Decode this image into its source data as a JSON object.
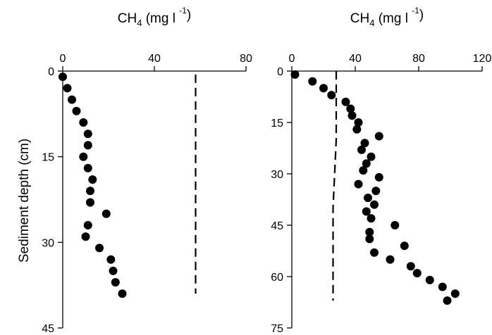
{
  "figure": {
    "y_axis_title": "Sediment depth (cm)"
  },
  "chart_data": [
    {
      "type": "scatter",
      "x_title": {
        "base": "CH",
        "sub": "4",
        "units": "(mg l",
        "sup": "-1",
        "close": ")"
      },
      "xlim": [
        0,
        80
      ],
      "x_ticks": [
        0,
        40,
        80
      ],
      "ylim": [
        0,
        45
      ],
      "y_ticks": [
        0,
        15,
        30,
        45
      ],
      "y_reversed": true,
      "x_axis_position": "top",
      "reference_line": {
        "style": "dashed",
        "x": [
          58,
          58
        ],
        "y": [
          0.6,
          39
        ]
      },
      "series": [
        {
          "marker": "filled-circle",
          "points": [
            {
              "x": 0,
              "y": 1
            },
            {
              "x": 2,
              "y": 3
            },
            {
              "x": 4,
              "y": 5
            },
            {
              "x": 6,
              "y": 7
            },
            {
              "x": 9,
              "y": 9
            },
            {
              "x": 11,
              "y": 11
            },
            {
              "x": 11,
              "y": 13
            },
            {
              "x": 9,
              "y": 15
            },
            {
              "x": 11,
              "y": 17
            },
            {
              "x": 13,
              "y": 19
            },
            {
              "x": 12,
              "y": 21
            },
            {
              "x": 12,
              "y": 23
            },
            {
              "x": 19,
              "y": 25
            },
            {
              "x": 11,
              "y": 27
            },
            {
              "x": 10,
              "y": 29
            },
            {
              "x": 16,
              "y": 31
            },
            {
              "x": 21,
              "y": 33
            },
            {
              "x": 22,
              "y": 35
            },
            {
              "x": 23,
              "y": 37
            },
            {
              "x": 26,
              "y": 39
            }
          ]
        }
      ]
    },
    {
      "type": "scatter",
      "x_title": {
        "base": "CH",
        "sub": "4",
        "units": "(mg l",
        "sup": "-1",
        "close": ")"
      },
      "xlim": [
        0,
        120
      ],
      "x_ticks": [
        0,
        40,
        80,
        120
      ],
      "ylim": [
        0,
        75
      ],
      "y_ticks": [
        0,
        15,
        30,
        45,
        60,
        75
      ],
      "y_reversed": true,
      "x_axis_position": "top",
      "reference_line": {
        "style": "dashed",
        "x": [
          28,
          28,
          26,
          26
        ],
        "y": [
          0,
          20,
          40,
          67
        ]
      },
      "series": [
        {
          "marker": "filled-circle",
          "points": [
            {
              "x": 2,
              "y": 1
            },
            {
              "x": 13,
              "y": 3
            },
            {
              "x": 20,
              "y": 5
            },
            {
              "x": 25,
              "y": 7
            },
            {
              "x": 34,
              "y": 9
            },
            {
              "x": 37,
              "y": 11
            },
            {
              "x": 38,
              "y": 13
            },
            {
              "x": 42,
              "y": 15
            },
            {
              "x": 41,
              "y": 17
            },
            {
              "x": 55,
              "y": 19
            },
            {
              "x": 46,
              "y": 21
            },
            {
              "x": 44,
              "y": 23
            },
            {
              "x": 50,
              "y": 25
            },
            {
              "x": 47,
              "y": 27
            },
            {
              "x": 45,
              "y": 29
            },
            {
              "x": 55,
              "y": 31
            },
            {
              "x": 42,
              "y": 33
            },
            {
              "x": 53,
              "y": 35
            },
            {
              "x": 48,
              "y": 37
            },
            {
              "x": 52,
              "y": 39
            },
            {
              "x": 47,
              "y": 41
            },
            {
              "x": 50,
              "y": 43
            },
            {
              "x": 65,
              "y": 45
            },
            {
              "x": 49,
              "y": 47
            },
            {
              "x": 49,
              "y": 49
            },
            {
              "x": 71,
              "y": 51
            },
            {
              "x": 52,
              "y": 53
            },
            {
              "x": 62,
              "y": 55
            },
            {
              "x": 75,
              "y": 57
            },
            {
              "x": 79,
              "y": 59
            },
            {
              "x": 87,
              "y": 61
            },
            {
              "x": 95,
              "y": 63
            },
            {
              "x": 103,
              "y": 65
            },
            {
              "x": 98,
              "y": 67
            }
          ]
        }
      ]
    }
  ]
}
